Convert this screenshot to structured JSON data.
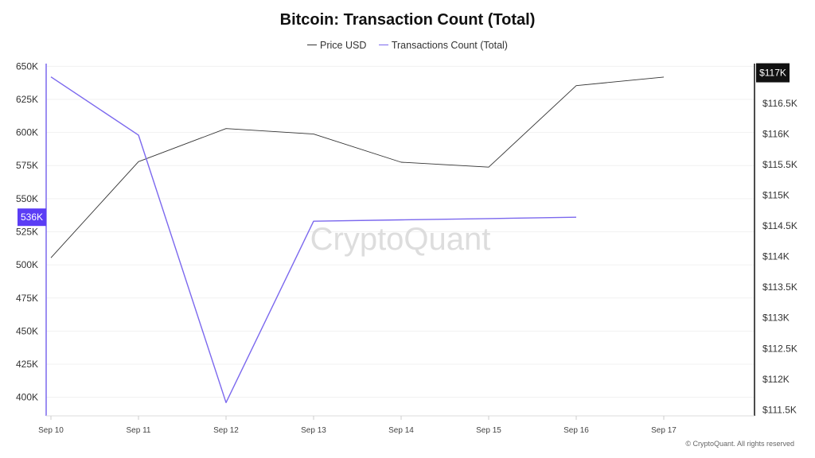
{
  "chart_data": {
    "type": "line",
    "title": "Bitcoin: Transaction Count (Total)",
    "categories": [
      "Sep 10",
      "Sep 11",
      "Sep 12",
      "Sep 13",
      "Sep 14",
      "Sep 15",
      "Sep 16",
      "Sep 17"
    ],
    "series": [
      {
        "name": "Price USD",
        "axis": "right",
        "color": "#333333",
        "values": [
          113980,
          115550,
          116090,
          116000,
          115540,
          115460,
          116790,
          116930
        ]
      },
      {
        "name": "Transactions Count (Total)",
        "axis": "left",
        "color": "#7b68ee",
        "values": [
          642000,
          598000,
          396000,
          533000,
          534000,
          535000,
          536000,
          null
        ]
      }
    ],
    "y_left": {
      "ylim": [
        386000,
        652000
      ],
      "ticks": [
        400000,
        425000,
        450000,
        475000,
        500000,
        525000,
        550000,
        575000,
        600000,
        625000,
        650000
      ],
      "tick_labels": [
        "400K",
        "425K",
        "450K",
        "475K",
        "500K",
        "525K",
        "550K",
        "575K",
        "600K",
        "625K",
        "650K"
      ]
    },
    "y_right": {
      "ylim": [
        111400,
        117150
      ],
      "ticks": [
        111500,
        112000,
        112500,
        113000,
        113500,
        114000,
        114500,
        115000,
        115500,
        116000,
        116500
      ],
      "tick_labels": [
        "$111.5K",
        "$112K",
        "$112.5K",
        "$113K",
        "$113.5K",
        "$114K",
        "$114.5K",
        "$115K",
        "$115.5K",
        "$116K",
        "$116.5K"
      ]
    },
    "badges": {
      "left": {
        "value": 536000,
        "label": "536K",
        "color": "#5b3df5"
      },
      "right": {
        "value": 117000,
        "label": "$117K",
        "color": "#111111"
      }
    },
    "grid": true,
    "legend_position": "top-center"
  },
  "watermark": "CryptoQuant",
  "copyright": "© CryptoQuant. All rights reserved"
}
